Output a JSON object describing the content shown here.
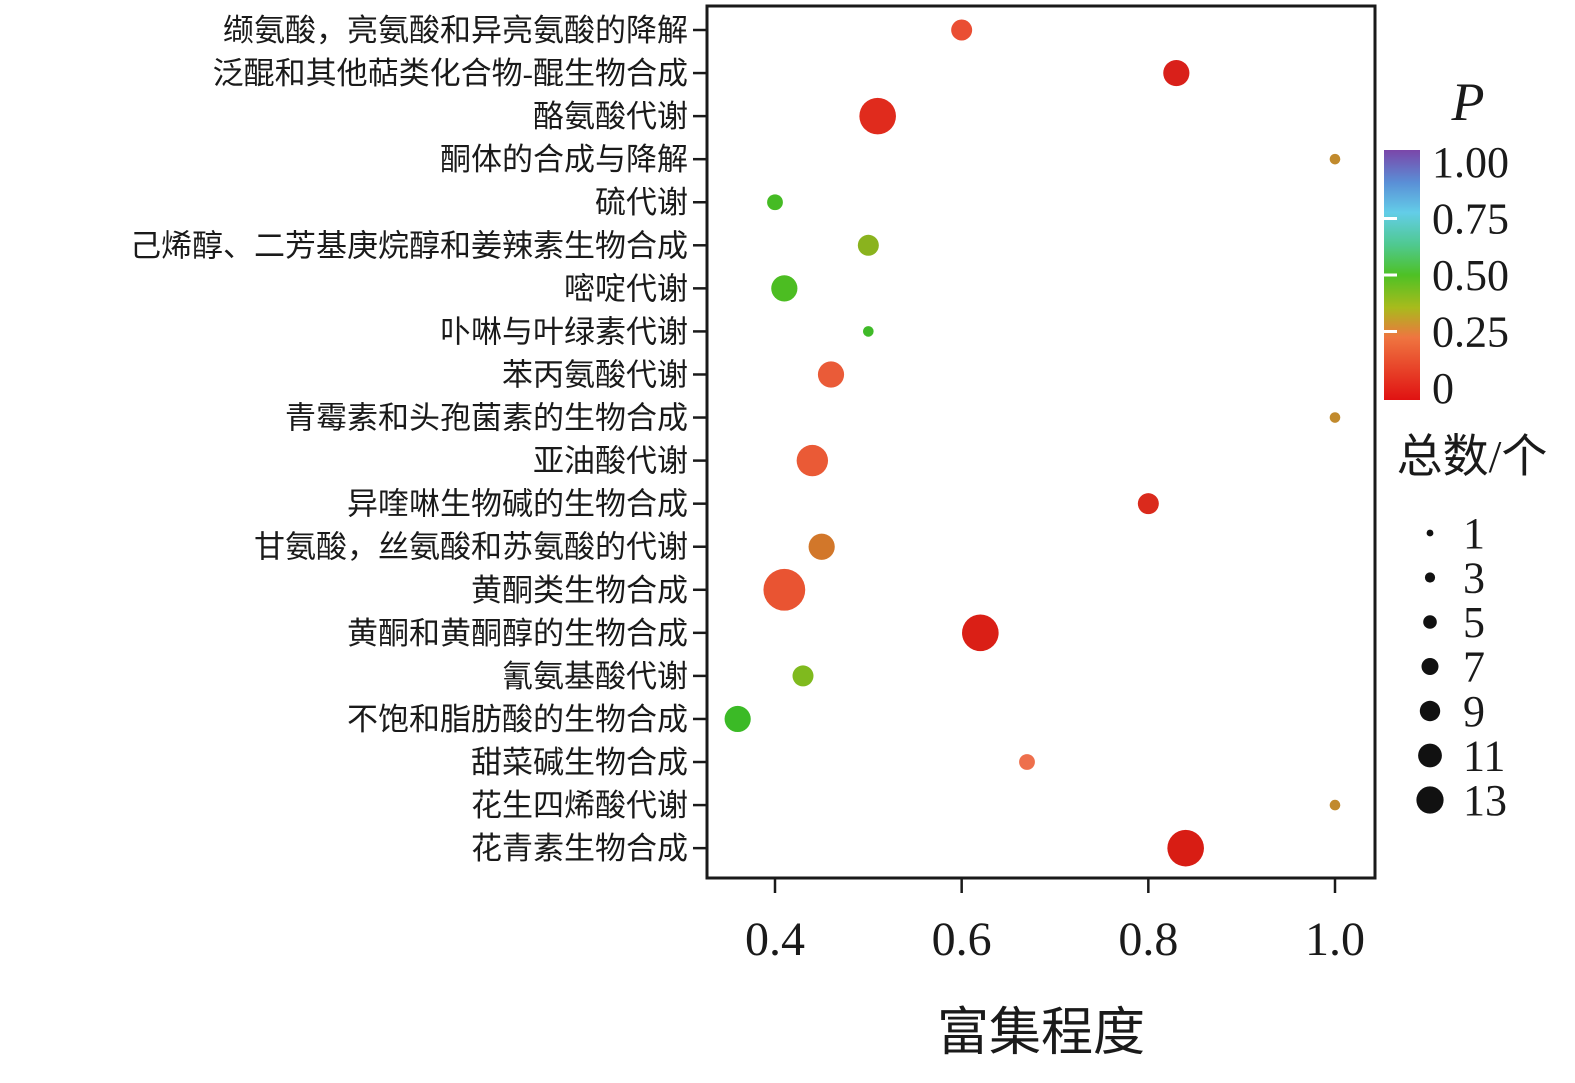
{
  "chart_data": {
    "type": "scatter",
    "title": "",
    "xlabel": "富集程度",
    "ylabel": "",
    "x_ticks": [
      "0.4",
      "0.6",
      "0.8",
      "1.0"
    ],
    "x_tick_values": [
      0.4,
      0.6,
      0.8,
      1.0
    ],
    "xlim": [
      0.33,
      1.04
    ],
    "color_legend": {
      "title": "P",
      "ticks": [
        "1.00",
        "0.75",
        "0.50",
        "0.25",
        "0"
      ],
      "gradient_stops": [
        {
          "offset": "0%",
          "color": "#7b46a9"
        },
        {
          "offset": "13%",
          "color": "#5a8fd6"
        },
        {
          "offset": "25%",
          "color": "#63cde8"
        },
        {
          "offset": "38%",
          "color": "#4fc98f"
        },
        {
          "offset": "50%",
          "color": "#4ec125"
        },
        {
          "offset": "63%",
          "color": "#a8bb1c"
        },
        {
          "offset": "75%",
          "color": "#ef7540"
        },
        {
          "offset": "100%",
          "color": "#e01212"
        }
      ]
    },
    "size_legend": {
      "title": "总数/个",
      "values": [
        1,
        3,
        5,
        7,
        9,
        11,
        13
      ]
    },
    "points": [
      {
        "pathway": "缬氨酸，亮氨酸和异亮氨酸的降解",
        "enrichment": 0.6,
        "count": 5,
        "p": 0.12,
        "color": "#ea4e33"
      },
      {
        "pathway": "泛醌和其他萜类化合物-醌生物合成",
        "enrichment": 0.83,
        "count": 7,
        "p": 0.03,
        "color": "#d9201a"
      },
      {
        "pathway": "酪氨酸代谢",
        "enrichment": 0.51,
        "count": 11,
        "p": 0.05,
        "color": "#e02b1d"
      },
      {
        "pathway": "酮体的合成与降解",
        "enrichment": 1.0,
        "count": 1,
        "p": 0.33,
        "color": "#c18a2d"
      },
      {
        "pathway": "硫代谢",
        "enrichment": 0.4,
        "count": 3,
        "p": 0.5,
        "color": "#45bb24"
      },
      {
        "pathway": "己烯醇、二芳基庚烷醇和姜辣素生物合成",
        "enrichment": 0.5,
        "count": 5,
        "p": 0.45,
        "color": "#8ab31e"
      },
      {
        "pathway": "嘧啶代谢",
        "enrichment": 0.41,
        "count": 7,
        "p": 0.5,
        "color": "#4cbd22"
      },
      {
        "pathway": "卟啉与叶绿素代谢",
        "enrichment": 0.5,
        "count": 1,
        "p": 0.5,
        "color": "#3fba28"
      },
      {
        "pathway": "苯丙氨酸代谢",
        "enrichment": 0.46,
        "count": 7,
        "p": 0.12,
        "color": "#ea5b38"
      },
      {
        "pathway": "青霉素和头孢菌素的生物合成",
        "enrichment": 1.0,
        "count": 1,
        "p": 0.33,
        "color": "#c18a2d"
      },
      {
        "pathway": "亚油酸代谢",
        "enrichment": 0.44,
        "count": 9,
        "p": 0.12,
        "color": "#ea5a36"
      },
      {
        "pathway": "异喹啉生物碱的生物合成",
        "enrichment": 0.8,
        "count": 5,
        "p": 0.04,
        "color": "#da2a1c"
      },
      {
        "pathway": "甘氨酸，丝氨酸和苏氨酸的代谢",
        "enrichment": 0.45,
        "count": 7,
        "p": 0.25,
        "color": "#d2772a"
      },
      {
        "pathway": "黄酮类生物合成",
        "enrichment": 0.41,
        "count": 13,
        "p": 0.12,
        "color": "#e95432"
      },
      {
        "pathway": "黄酮和黄酮醇的生物合成",
        "enrichment": 0.62,
        "count": 11,
        "p": 0.02,
        "color": "#da1f16"
      },
      {
        "pathway": "氰氨基酸代谢",
        "enrichment": 0.43,
        "count": 5,
        "p": 0.45,
        "color": "#7fba1e"
      },
      {
        "pathway": "不饱和脂肪酸的生物合成",
        "enrichment": 0.36,
        "count": 7,
        "p": 0.5,
        "color": "#3bba26"
      },
      {
        "pathway": "甜菜碱生物合成",
        "enrichment": 0.67,
        "count": 3,
        "p": 0.15,
        "color": "#ee6f4c"
      },
      {
        "pathway": "花生四烯酸代谢",
        "enrichment": 1.0,
        "count": 1,
        "p": 0.33,
        "color": "#c18a2d"
      },
      {
        "pathway": "花青素生物合成",
        "enrichment": 0.84,
        "count": 11,
        "p": 0.02,
        "color": "#d81d14"
      }
    ]
  }
}
